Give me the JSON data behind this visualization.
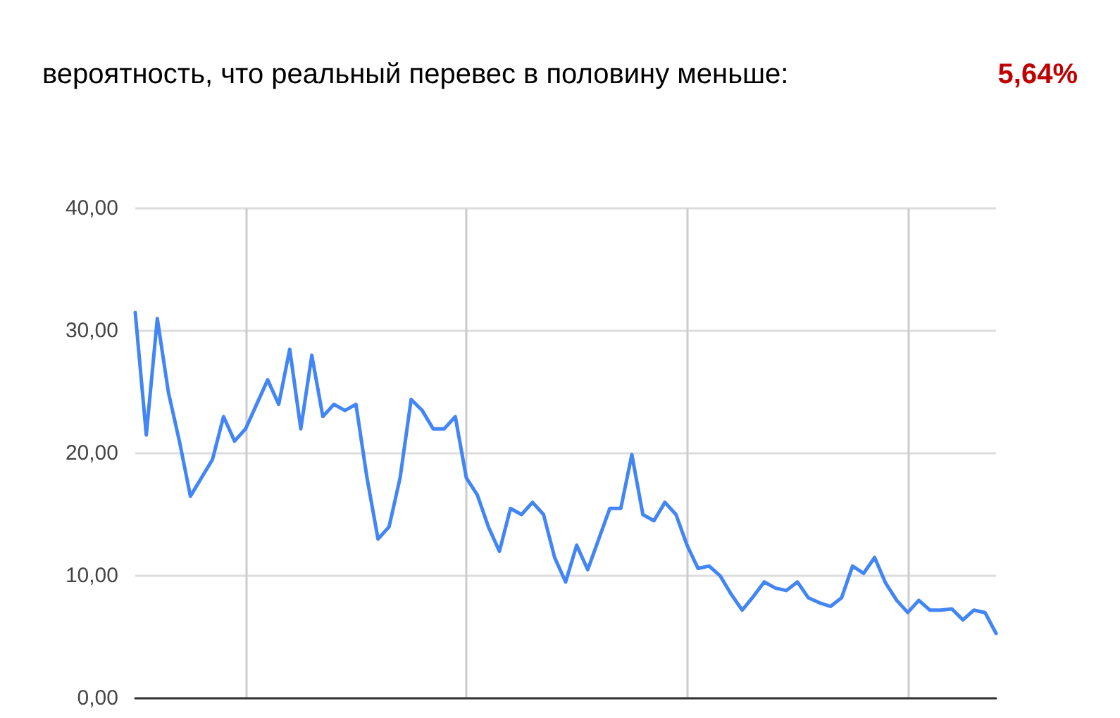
{
  "chart_data": {
    "type": "line",
    "title": "вероятность, что реальный перевес в половину меньше:",
    "annotations": [
      "5,64%"
    ],
    "categories": [
      null,
      null,
      null,
      null,
      null,
      null,
      null,
      null,
      null,
      null,
      null,
      null,
      null,
      null,
      null,
      null,
      null,
      null,
      null,
      null,
      null,
      null,
      null,
      null,
      null,
      null,
      null,
      null,
      null,
      null,
      null,
      null,
      null,
      null,
      null,
      null,
      null,
      null,
      null,
      null,
      null,
      null,
      null,
      null,
      null,
      null,
      null,
      null,
      null,
      null,
      null,
      null,
      null,
      null,
      null,
      null,
      null,
      null,
      null,
      null,
      null,
      null,
      null,
      null,
      null,
      null,
      null,
      null,
      null,
      null,
      null,
      null,
      null,
      null,
      null,
      null,
      null,
      null,
      null
    ],
    "series": [
      {
        "color": "#4285f4",
        "values": [
          31.5,
          21.5,
          31,
          25,
          21,
          16.5,
          18,
          19.5,
          23,
          21,
          22,
          24,
          26,
          24,
          28.5,
          22,
          28,
          23,
          24,
          23.5,
          24,
          18,
          13,
          14,
          18,
          24.4,
          23.5,
          22,
          22,
          23,
          18,
          16.6,
          14,
          12,
          15.5,
          15,
          16,
          15,
          11.5,
          9.5,
          12.5,
          10.5,
          13,
          15.5,
          15.5,
          19.9,
          15,
          14.5,
          16,
          15,
          12.5,
          10.6,
          10.8,
          10,
          8.5,
          7.2,
          8.3,
          9.5,
          9,
          8.8,
          9.5,
          8.2,
          7.8,
          7.5,
          8.2,
          10.8,
          10.2,
          11.5,
          9.4,
          8,
          7,
          8,
          7.2,
          7.2,
          7.3,
          6.4,
          7.2,
          7,
          5.3
        ]
      }
    ],
    "ylim": [
      0,
      40
    ],
    "yticks": [
      {
        "value": 0,
        "label": "0,00"
      },
      {
        "value": 10,
        "label": "10,00"
      },
      {
        "value": 20,
        "label": "20,00"
      },
      {
        "value": 30,
        "label": "30,00"
      },
      {
        "value": 40,
        "label": "40,00"
      }
    ],
    "grid": true,
    "marker": "none",
    "line_style": "solid"
  }
}
